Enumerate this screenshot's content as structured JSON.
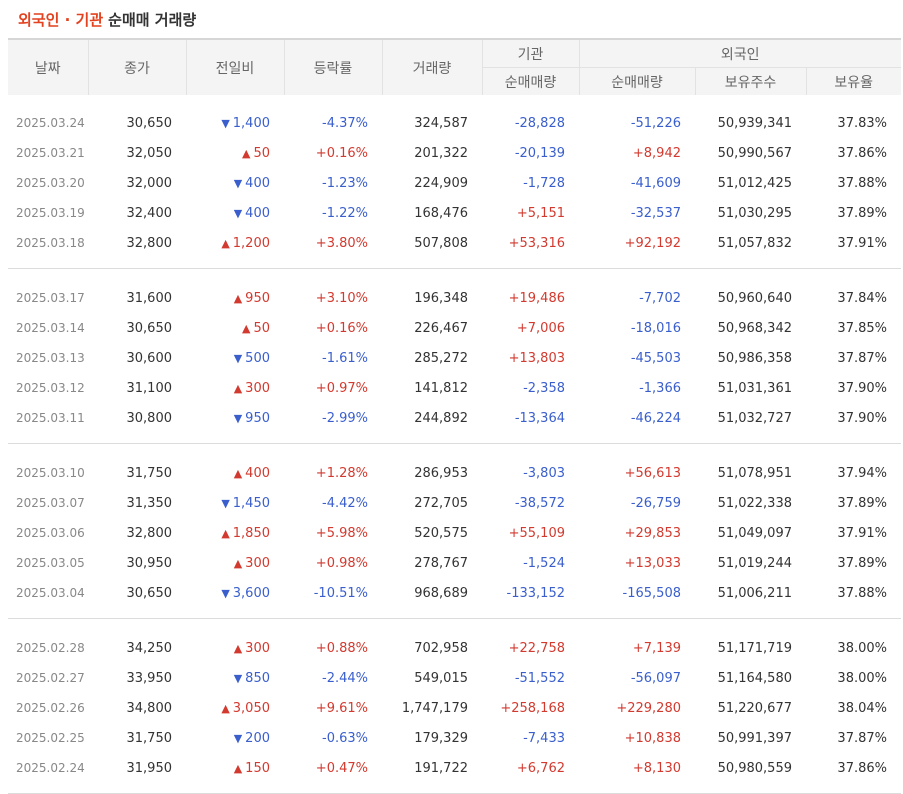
{
  "title": {
    "part1": "외국인 · 기관",
    "part2": "순매매 거래량"
  },
  "headers": {
    "date": "날짜",
    "close": "종가",
    "change": "전일비",
    "rate": "등락률",
    "volume": "거래량",
    "institution": "기관",
    "foreigner": "외국인",
    "inst_net": "순매매량",
    "foreign_net": "순매매량",
    "foreign_holdings": "보유주수",
    "foreign_ratio": "보유율"
  },
  "icons": {
    "up": "▲",
    "down": "▼"
  },
  "colors": {
    "up": "#d23a2f",
    "down": "#3a5fcd",
    "title": "#e2421f"
  },
  "groups": [
    [
      {
        "date": "2025.03.24",
        "close": "30,650",
        "dir": "down",
        "change": "1,400",
        "rate": "-4.37%",
        "volume": "324,587",
        "inst": "-28,828",
        "foreign": "-51,226",
        "holdings": "50,939,341",
        "ratio": "37.83%"
      },
      {
        "date": "2025.03.21",
        "close": "32,050",
        "dir": "up",
        "change": "50",
        "rate": "+0.16%",
        "volume": "201,322",
        "inst": "-20,139",
        "foreign": "+8,942",
        "holdings": "50,990,567",
        "ratio": "37.86%"
      },
      {
        "date": "2025.03.20",
        "close": "32,000",
        "dir": "down",
        "change": "400",
        "rate": "-1.23%",
        "volume": "224,909",
        "inst": "-1,728",
        "foreign": "-41,609",
        "holdings": "51,012,425",
        "ratio": "37.88%"
      },
      {
        "date": "2025.03.19",
        "close": "32,400",
        "dir": "down",
        "change": "400",
        "rate": "-1.22%",
        "volume": "168,476",
        "inst": "+5,151",
        "foreign": "-32,537",
        "holdings": "51,030,295",
        "ratio": "37.89%"
      },
      {
        "date": "2025.03.18",
        "close": "32,800",
        "dir": "up",
        "change": "1,200",
        "rate": "+3.80%",
        "volume": "507,808",
        "inst": "+53,316",
        "foreign": "+92,192",
        "holdings": "51,057,832",
        "ratio": "37.91%"
      }
    ],
    [
      {
        "date": "2025.03.17",
        "close": "31,600",
        "dir": "up",
        "change": "950",
        "rate": "+3.10%",
        "volume": "196,348",
        "inst": "+19,486",
        "foreign": "-7,702",
        "holdings": "50,960,640",
        "ratio": "37.84%"
      },
      {
        "date": "2025.03.14",
        "close": "30,650",
        "dir": "up",
        "change": "50",
        "rate": "+0.16%",
        "volume": "226,467",
        "inst": "+7,006",
        "foreign": "-18,016",
        "holdings": "50,968,342",
        "ratio": "37.85%"
      },
      {
        "date": "2025.03.13",
        "close": "30,600",
        "dir": "down",
        "change": "500",
        "rate": "-1.61%",
        "volume": "285,272",
        "inst": "+13,803",
        "foreign": "-45,503",
        "holdings": "50,986,358",
        "ratio": "37.87%"
      },
      {
        "date": "2025.03.12",
        "close": "31,100",
        "dir": "up",
        "change": "300",
        "rate": "+0.97%",
        "volume": "141,812",
        "inst": "-2,358",
        "foreign": "-1,366",
        "holdings": "51,031,361",
        "ratio": "37.90%"
      },
      {
        "date": "2025.03.11",
        "close": "30,800",
        "dir": "down",
        "change": "950",
        "rate": "-2.99%",
        "volume": "244,892",
        "inst": "-13,364",
        "foreign": "-46,224",
        "holdings": "51,032,727",
        "ratio": "37.90%"
      }
    ],
    [
      {
        "date": "2025.03.10",
        "close": "31,750",
        "dir": "up",
        "change": "400",
        "rate": "+1.28%",
        "volume": "286,953",
        "inst": "-3,803",
        "foreign": "+56,613",
        "holdings": "51,078,951",
        "ratio": "37.94%"
      },
      {
        "date": "2025.03.07",
        "close": "31,350",
        "dir": "down",
        "change": "1,450",
        "rate": "-4.42%",
        "volume": "272,705",
        "inst": "-38,572",
        "foreign": "-26,759",
        "holdings": "51,022,338",
        "ratio": "37.89%"
      },
      {
        "date": "2025.03.06",
        "close": "32,800",
        "dir": "up",
        "change": "1,850",
        "rate": "+5.98%",
        "volume": "520,575",
        "inst": "+55,109",
        "foreign": "+29,853",
        "holdings": "51,049,097",
        "ratio": "37.91%"
      },
      {
        "date": "2025.03.05",
        "close": "30,950",
        "dir": "up",
        "change": "300",
        "rate": "+0.98%",
        "volume": "278,767",
        "inst": "-1,524",
        "foreign": "+13,033",
        "holdings": "51,019,244",
        "ratio": "37.89%"
      },
      {
        "date": "2025.03.04",
        "close": "30,650",
        "dir": "down",
        "change": "3,600",
        "rate": "-10.51%",
        "volume": "968,689",
        "inst": "-133,152",
        "foreign": "-165,508",
        "holdings": "51,006,211",
        "ratio": "37.88%"
      }
    ],
    [
      {
        "date": "2025.02.28",
        "close": "34,250",
        "dir": "up",
        "change": "300",
        "rate": "+0.88%",
        "volume": "702,958",
        "inst": "+22,758",
        "foreign": "+7,139",
        "holdings": "51,171,719",
        "ratio": "38.00%"
      },
      {
        "date": "2025.02.27",
        "close": "33,950",
        "dir": "down",
        "change": "850",
        "rate": "-2.44%",
        "volume": "549,015",
        "inst": "-51,552",
        "foreign": "-56,097",
        "holdings": "51,164,580",
        "ratio": "38.00%"
      },
      {
        "date": "2025.02.26",
        "close": "34,800",
        "dir": "up",
        "change": "3,050",
        "rate": "+9.61%",
        "volume": "1,747,179",
        "inst": "+258,168",
        "foreign": "+229,280",
        "holdings": "51,220,677",
        "ratio": "38.04%"
      },
      {
        "date": "2025.02.25",
        "close": "31,750",
        "dir": "down",
        "change": "200",
        "rate": "-0.63%",
        "volume": "179,329",
        "inst": "-7,433",
        "foreign": "+10,838",
        "holdings": "50,991,397",
        "ratio": "37.87%"
      },
      {
        "date": "2025.02.24",
        "close": "31,950",
        "dir": "up",
        "change": "150",
        "rate": "+0.47%",
        "volume": "191,722",
        "inst": "+6,762",
        "foreign": "+8,130",
        "holdings": "50,980,559",
        "ratio": "37.86%"
      }
    ]
  ]
}
